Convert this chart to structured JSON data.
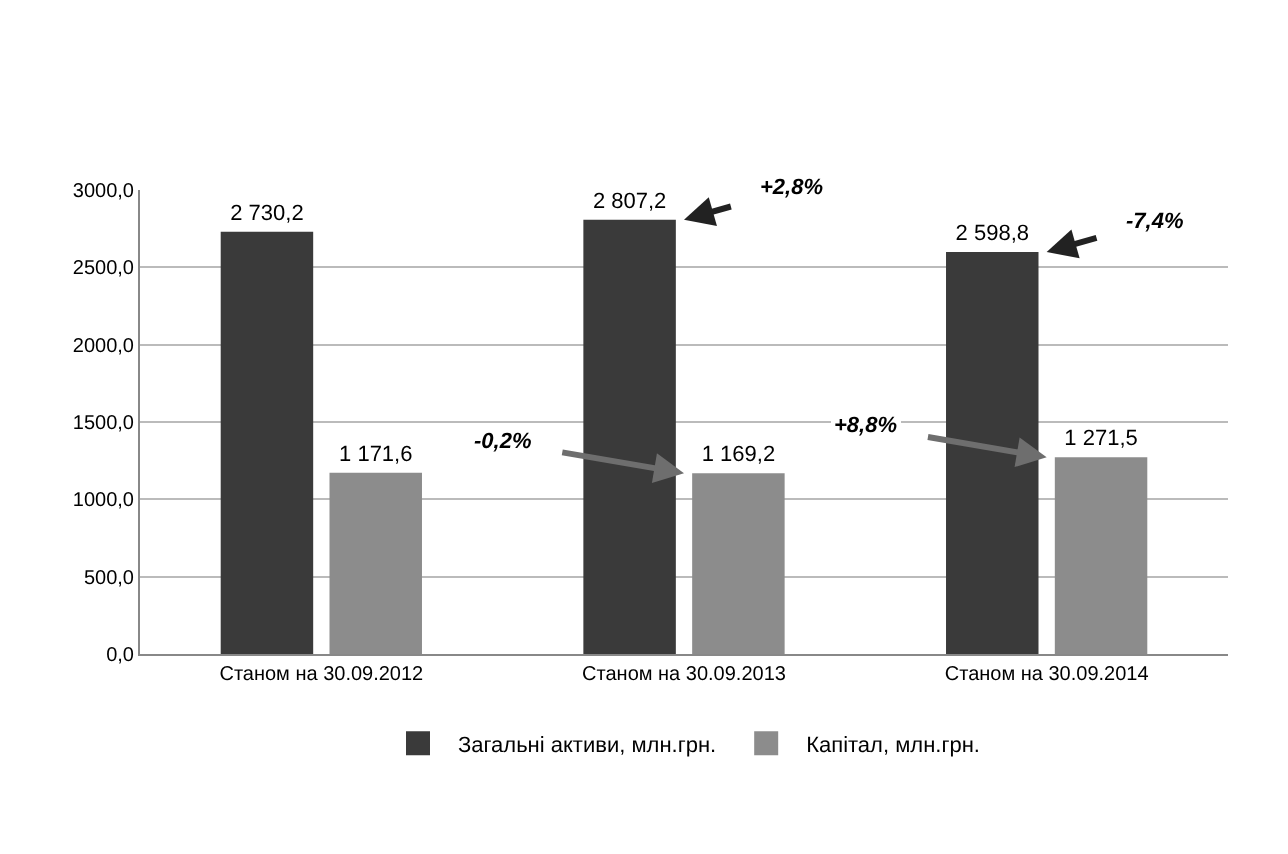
{
  "chart_data": {
    "type": "bar",
    "categories": [
      "Станом на 30.09.2012",
      "Станом на 30.09.2013",
      "Станом на 30.09.2014"
    ],
    "series": [
      {
        "name": "Загальні активи, млн.грн.",
        "color": "#3a3a3a",
        "values": [
          2730.2,
          2807.2,
          2598.8
        ],
        "value_labels": [
          "2 730,2",
          "2 807,2",
          "2 598,8"
        ]
      },
      {
        "name": "Капітал, млн.грн.",
        "color": "#8c8c8c",
        "values": [
          1171.6,
          1169.2,
          1271.5
        ],
        "value_labels": [
          "1 171,6",
          "1 169,2",
          "1 271,5"
        ]
      }
    ],
    "ylim": [
      0,
      3000
    ],
    "yticks": [
      {
        "value": 0,
        "label": "0,0"
      },
      {
        "value": 500,
        "label": "500,0"
      },
      {
        "value": 1000,
        "label": "1000,0"
      },
      {
        "value": 1500,
        "label": "1500,0"
      },
      {
        "value": 2000,
        "label": "2000,0"
      },
      {
        "value": 2500,
        "label": "2500,0"
      },
      {
        "value": 3000,
        "label": "3000,0"
      }
    ],
    "grid": "y",
    "legend": "bottom",
    "annotations": [
      {
        "text": "+2,8%",
        "x": "Станом на 30.09.2013",
        "y": 2807.2
      },
      {
        "text": "-7,4%",
        "x": "Станом на 30.09.2014",
        "y": 2598.8
      },
      {
        "text": "-0,2%",
        "x": "Станом на 30.09.2013",
        "y": 1169.2
      },
      {
        "text": "+8,8%",
        "x": "Станом на 30.09.2014",
        "y": 1271.5
      }
    ]
  }
}
